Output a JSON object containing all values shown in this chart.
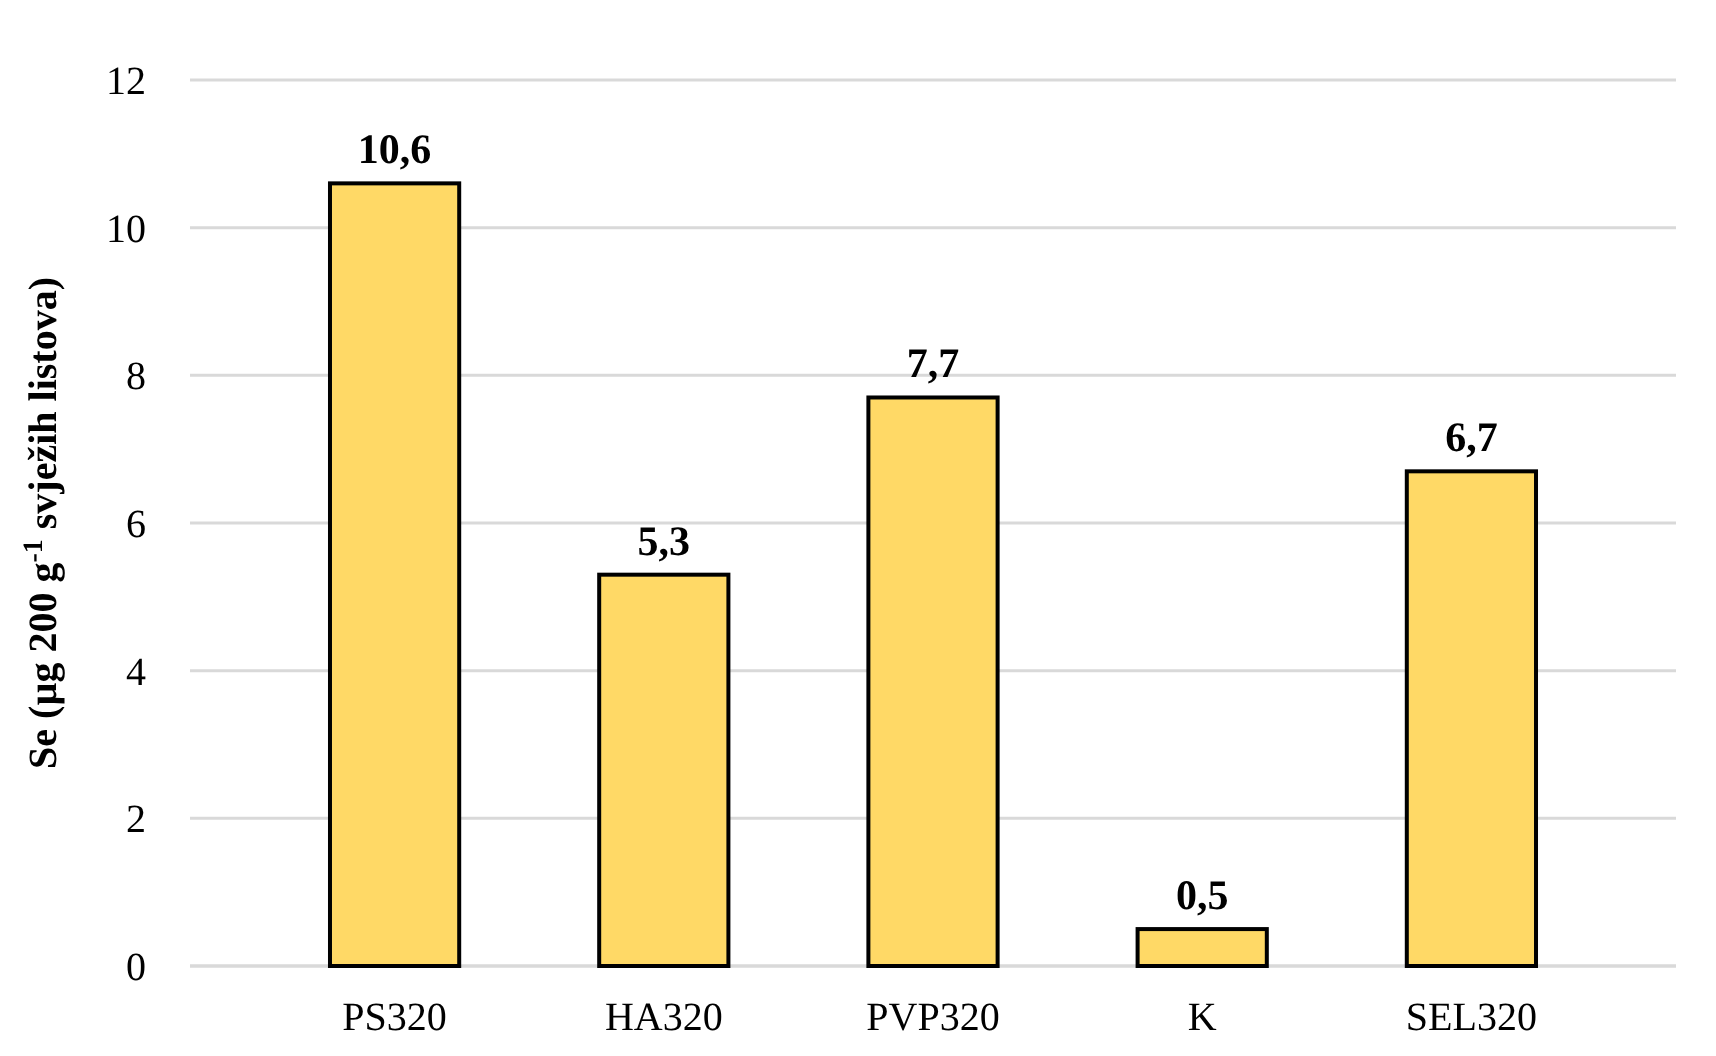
{
  "chart_data": {
    "type": "bar",
    "ylabel": "Se (µg 200 g$^{-1}$ svježih listova)",
    "categories": [
      "PS320",
      "HA320",
      "PVP320",
      "K",
      "SEL320"
    ],
    "values": [
      10.6,
      5.3,
      7.7,
      0.5,
      6.7
    ],
    "value_labels": [
      "10,6",
      "5,3",
      "7,7",
      "0,5",
      "6,7"
    ],
    "color": "#ffd966",
    "ylim": [
      0,
      12
    ],
    "yticks": [
      0,
      2,
      4,
      6,
      8,
      10,
      12
    ],
    "grid": "y"
  }
}
